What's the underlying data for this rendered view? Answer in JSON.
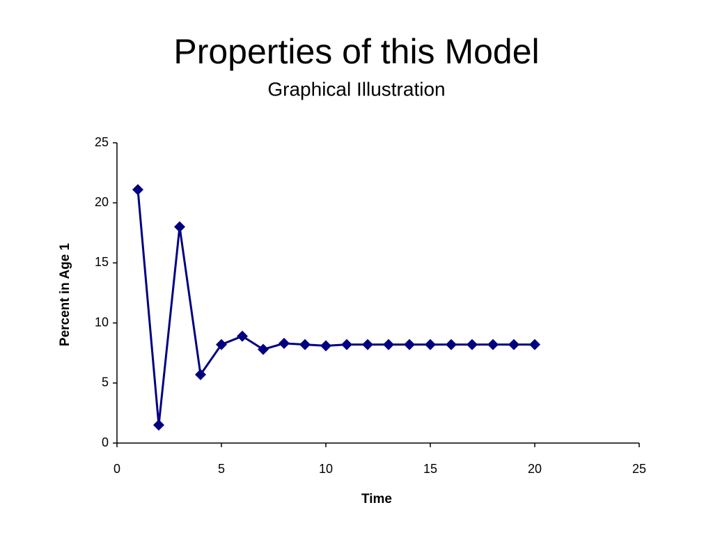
{
  "chart_data": {
    "type": "line",
    "title": "Properties of this Model",
    "subtitle": "Graphical Illustration",
    "x_label": "Time",
    "y_label": "Percent in Age 1",
    "x": [
      1,
      2,
      3,
      4,
      5,
      6,
      7,
      8,
      9,
      10,
      11,
      12,
      13,
      14,
      15,
      16,
      17,
      18,
      19,
      20
    ],
    "series": [
      {
        "name": "Percent in Age 1",
        "color": "#000080",
        "values": [
          21.1,
          1.5,
          18.0,
          5.7,
          8.2,
          8.9,
          7.8,
          8.3,
          8.2,
          8.1,
          8.2,
          8.2,
          8.2,
          8.2,
          8.2,
          8.2,
          8.2,
          8.2,
          8.2,
          8.2
        ]
      }
    ],
    "xlim": [
      0,
      25
    ],
    "xticks": [
      0,
      5,
      10,
      15,
      20,
      25
    ],
    "ylim": [
      0,
      25
    ],
    "yticks": [
      0,
      5,
      10,
      15,
      20,
      25
    ],
    "grid": false
  }
}
